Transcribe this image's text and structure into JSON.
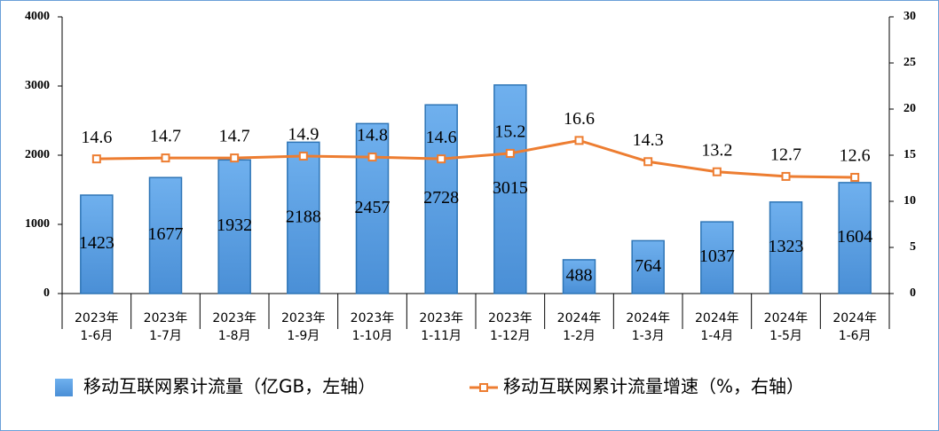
{
  "chart_data": {
    "type": "bar-line",
    "categories": [
      "2023年\n1-6月",
      "2023年\n1-7月",
      "2023年\n1-8月",
      "2023年\n1-9月",
      "2023年\n1-10月",
      "2023年\n1-11月",
      "2023年\n1-12月",
      "2024年\n1-2月",
      "2024年\n1-3月",
      "2024年\n1-4月",
      "2024年\n1-5月",
      "2024年\n1-6月"
    ],
    "series": [
      {
        "name": "移动互联网累计流量（亿GB，左轴）",
        "type": "bar",
        "color": "#5b9bd5",
        "values": [
          1423,
          1677,
          1932,
          2188,
          2457,
          2728,
          3015,
          488,
          764,
          1037,
          1323,
          1604
        ]
      },
      {
        "name": "移动互联网累计流量增速（%，右轴）",
        "type": "line",
        "axis": "y2",
        "color": "#ed7d31",
        "values": [
          14.6,
          14.7,
          14.7,
          14.9,
          14.8,
          14.6,
          15.2,
          16.6,
          14.3,
          13.2,
          12.7,
          12.6
        ]
      }
    ],
    "ylim": [
      0,
      4000
    ],
    "yticks": [
      0,
      1000,
      2000,
      3000,
      4000
    ],
    "y2lim": [
      0,
      30
    ],
    "y2ticks": [
      0,
      5,
      10,
      15,
      20,
      25,
      30
    ],
    "grid": false,
    "legend": "bottom"
  }
}
